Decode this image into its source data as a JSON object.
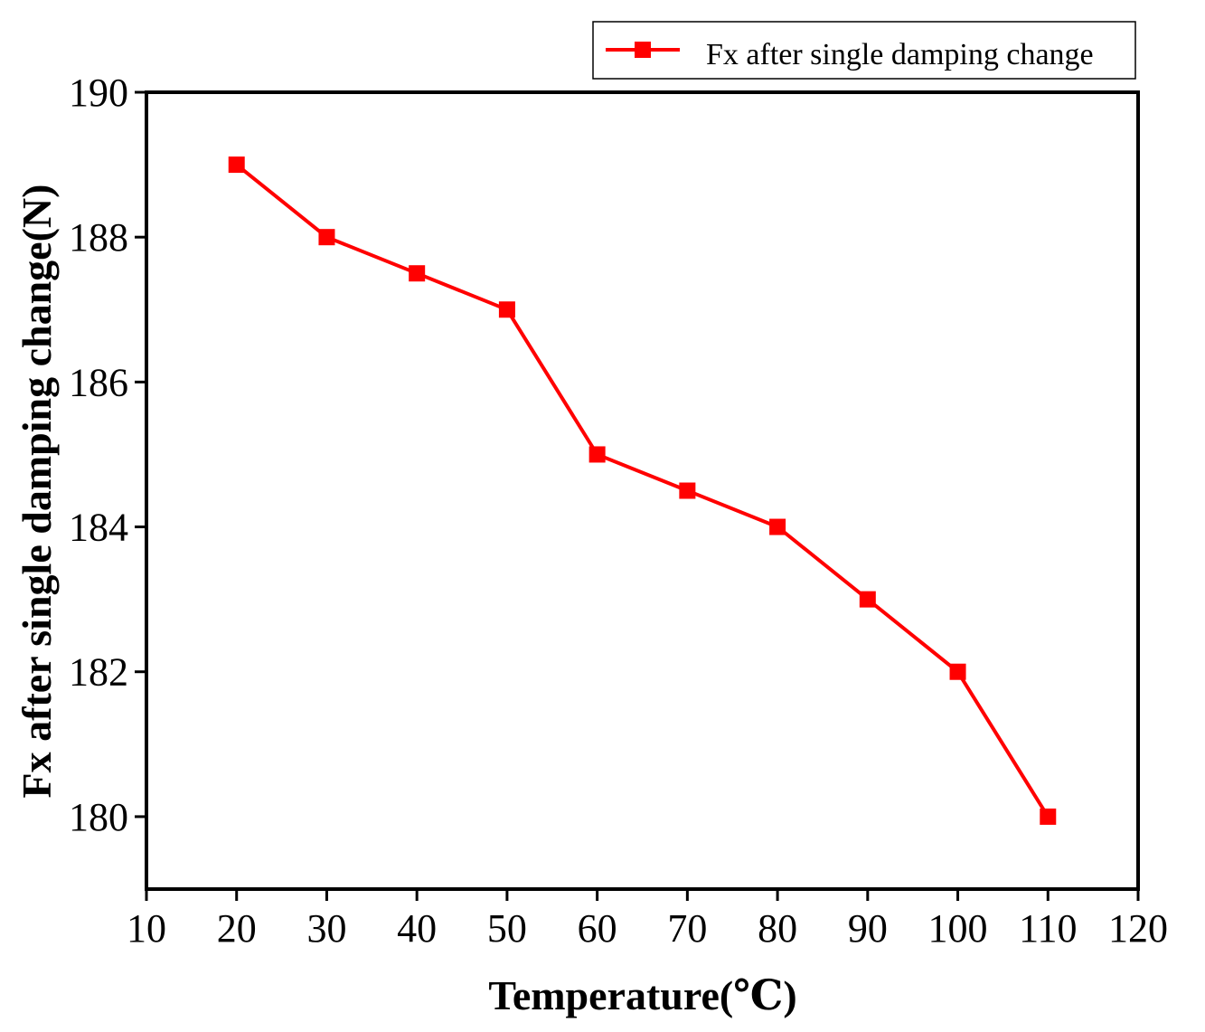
{
  "chart_data": {
    "type": "line",
    "title": "",
    "xlabel": "Temperature(℃)",
    "ylabel": "Fx after single damping change(N)",
    "xlim": [
      10,
      120
    ],
    "ylim": [
      179,
      190
    ],
    "x_ticks": [
      10,
      20,
      30,
      40,
      50,
      60,
      70,
      80,
      90,
      100,
      110,
      120
    ],
    "y_ticks": [
      180,
      182,
      184,
      186,
      188,
      190
    ],
    "grid": false,
    "legend_position": "top-right",
    "series": [
      {
        "name": "Fx after single damping change",
        "color": "#ff0000",
        "marker": "square",
        "x": [
          20,
          30,
          40,
          50,
          60,
          70,
          80,
          90,
          100,
          110
        ],
        "y": [
          189,
          188,
          187.5,
          187,
          185,
          184.5,
          184,
          183,
          182,
          180
        ]
      }
    ]
  }
}
